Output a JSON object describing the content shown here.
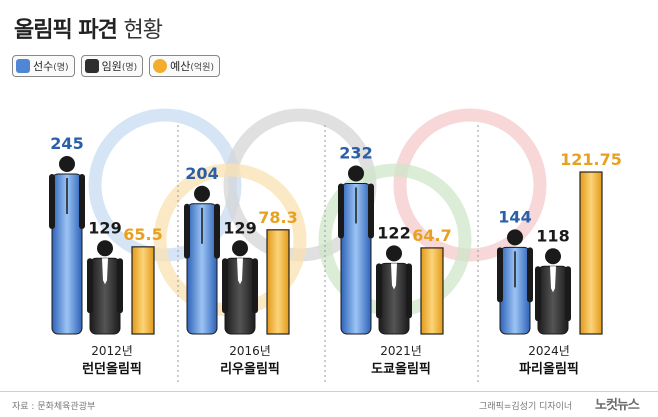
{
  "title": {
    "main": "올림픽 파견",
    "sub": "현황"
  },
  "legend": [
    {
      "label": "선수",
      "unit": "(명)",
      "icon": "athlete-icon",
      "color": "#4f86d6"
    },
    {
      "label": "임원",
      "unit": "(명)",
      "icon": "official-icon",
      "color": "#2e2e2e"
    },
    {
      "label": "예산",
      "unit": "(억원)",
      "icon": "budget-swatch",
      "color": "#f2ad2c"
    }
  ],
  "chart_data": {
    "type": "bar",
    "categories": [
      "2012년 런던올림픽",
      "2016년 리우올림픽",
      "2021년 도쿄올림픽",
      "2024년 파리올림픽"
    ],
    "years": [
      "2012년",
      "2016년",
      "2021년",
      "2024년"
    ],
    "games": [
      "런던올림픽",
      "리우올림픽",
      "도쿄올림픽",
      "파리올림픽"
    ],
    "series": [
      {
        "name": "선수",
        "unit": "명",
        "values": [
          245,
          204,
          232,
          144
        ],
        "labels": [
          "245",
          "204",
          "232",
          "144"
        ],
        "color": "#4f86d6",
        "label_color": "#2a5fa8"
      },
      {
        "name": "임원",
        "unit": "명",
        "values": [
          129,
          129,
          122,
          118
        ],
        "labels": [
          "129",
          "129",
          "122",
          "118"
        ],
        "color": "#2e2e2e",
        "label_color": "#1a1a1a"
      },
      {
        "name": "예산",
        "unit": "억원",
        "values": [
          65.5,
          78.3,
          64.7,
          121.75
        ],
        "labels": [
          "65.5",
          "78.3",
          "64.7",
          "121.75"
        ],
        "color": "#f2ad2c",
        "label_color": "#e8a020"
      }
    ],
    "ylim": [
      0,
      250
    ],
    "grid": false,
    "legend_position": "top-left"
  },
  "footer": {
    "source": "자료 : 문화체육관광부",
    "credit": "그래픽=김성기 디자이너",
    "logo": "노컷뉴스"
  }
}
